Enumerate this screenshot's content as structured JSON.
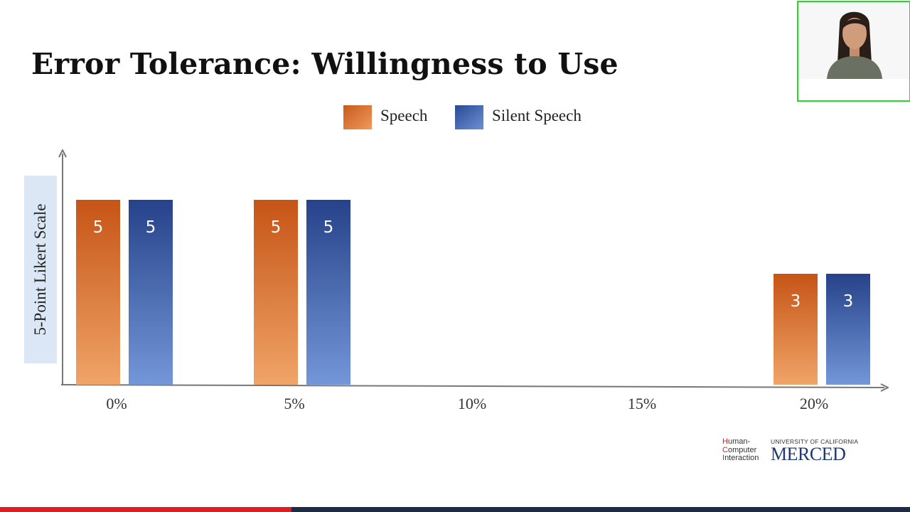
{
  "slide": {
    "title": "Error Tolerance: Willingness to Use"
  },
  "colors": {
    "speech": "#d96b2c",
    "silent_speech": "#3a5fae",
    "axis": "#777777",
    "webcam_border": "#22dd22",
    "progress_fill": "#e01b22",
    "progress_track": "#1c2a44"
  },
  "chart_data": {
    "type": "bar",
    "ylabel": "5-Point Likert Scale",
    "xlabel": "",
    "categories": [
      "0%",
      "5%",
      "10%",
      "15%",
      "20%"
    ],
    "series": [
      {
        "name": "Speech",
        "values": [
          5,
          5,
          null,
          null,
          3
        ]
      },
      {
        "name": "Silent Speech",
        "values": [
          5,
          5,
          null,
          null,
          3
        ]
      }
    ],
    "ylim": [
      0,
      5.5
    ],
    "legend": "top-center",
    "grid": false
  },
  "logo": {
    "hci_line1": "Human-",
    "hci_line2": "Computer",
    "hci_line3": "Interaction",
    "uc": "UNIVERSITY OF CALIFORNIA",
    "merced": "MERCED"
  },
  "video": {
    "progress": 0.32
  }
}
